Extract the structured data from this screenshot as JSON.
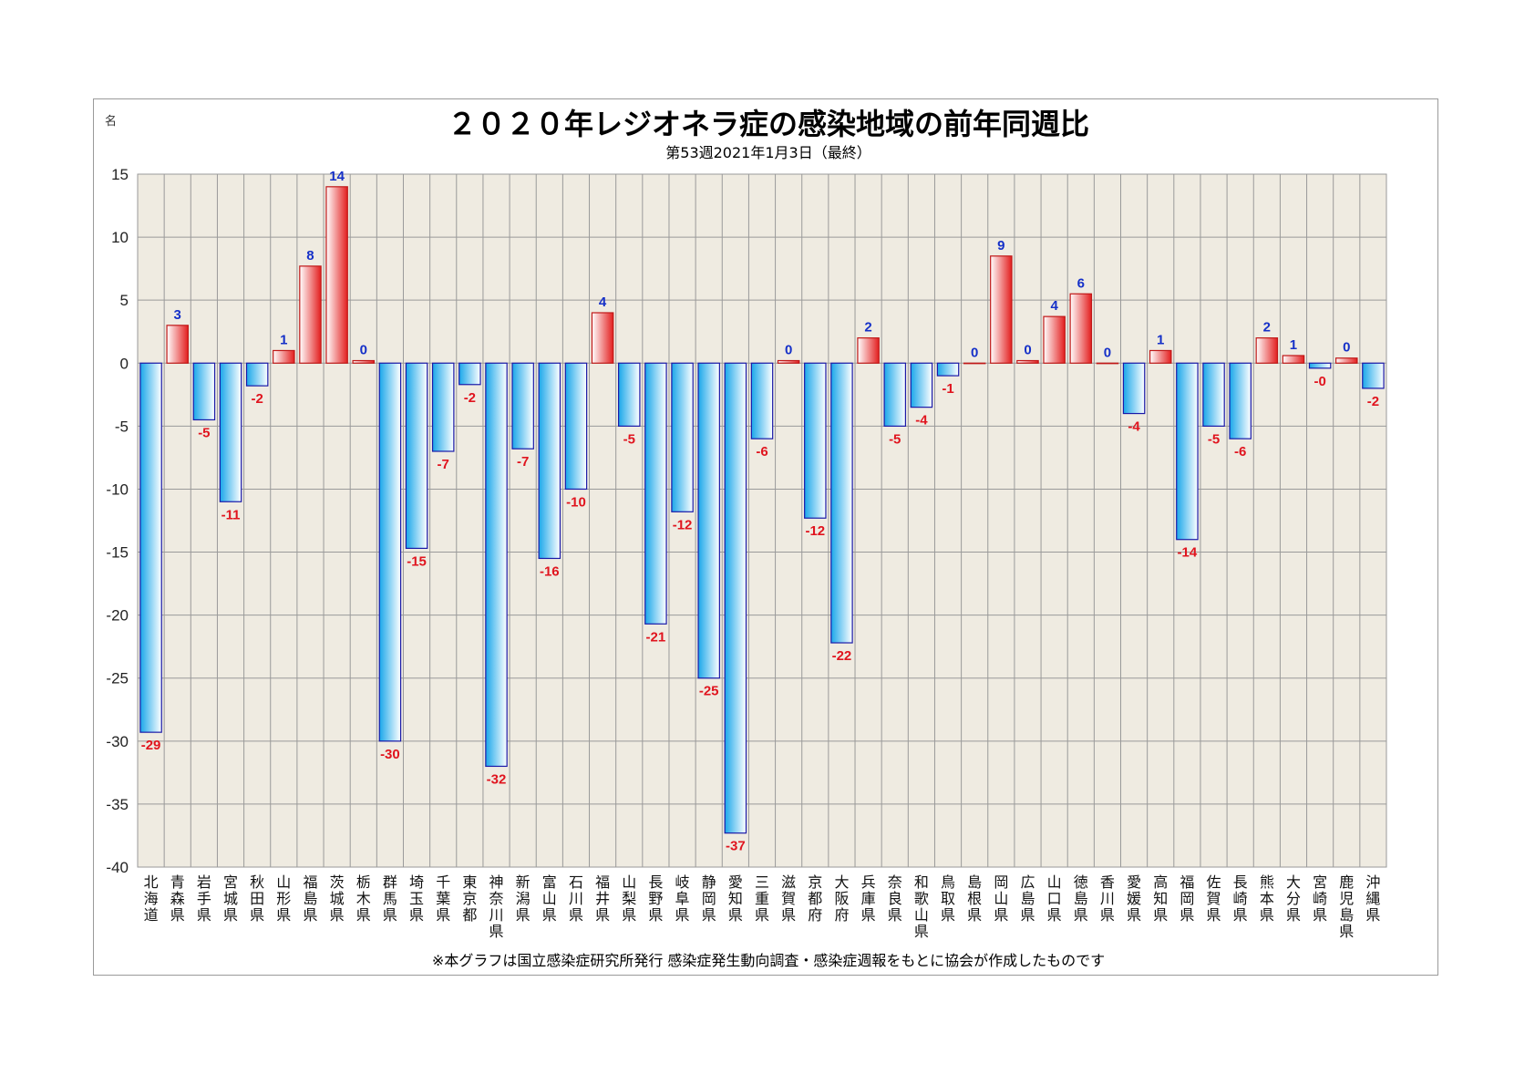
{
  "chart_data": {
    "type": "bar",
    "title": "２０２０年レジオネラ症の感染地域の前年同週比",
    "subtitle": "第53週2021年1月3日（最終）",
    "ylabel": "名",
    "ylim": [
      -40,
      15
    ],
    "yticks": [
      15,
      10,
      5,
      0,
      -5,
      -10,
      -15,
      -20,
      -25,
      -30,
      -35,
      -40
    ],
    "grid": true,
    "categories": [
      "北海道",
      "青森県",
      "岩手県",
      "宮城県",
      "秋田県",
      "山形県",
      "福島県",
      "茨城県",
      "栃木県",
      "群馬県",
      "埼玉県",
      "千葉県",
      "東京都",
      "神奈川県",
      "新潟県",
      "富山県",
      "石川県",
      "福井県",
      "山梨県",
      "長野県",
      "岐阜県",
      "静岡県",
      "愛知県",
      "三重県",
      "滋賀県",
      "京都府",
      "大阪府",
      "兵庫県",
      "奈良県",
      "和歌山県",
      "鳥取県",
      "島根県",
      "岡山県",
      "広島県",
      "山口県",
      "徳島県",
      "香川県",
      "愛媛県",
      "高知県",
      "福岡県",
      "佐賀県",
      "長崎県",
      "熊本県",
      "大分県",
      "宮崎県",
      "鹿児島県",
      "沖縄県"
    ],
    "values": [
      -29.3,
      3,
      -4.5,
      -11,
      -1.8,
      1,
      7.7,
      14,
      0.2,
      -30,
      -14.7,
      -7,
      -1.7,
      -32,
      -6.8,
      -15.5,
      -10,
      4,
      -5,
      -20.7,
      -11.8,
      -25,
      -37.3,
      -6,
      0.2,
      -12.3,
      -22.2,
      2,
      -5,
      -3.5,
      -1,
      0,
      8.5,
      0.2,
      3.7,
      5.5,
      0,
      -4,
      1,
      -14,
      -5,
      -6,
      2,
      0.6,
      -0.4,
      0.4,
      -2
    ],
    "data_labels": [
      "-29",
      "3",
      "-5",
      "-11",
      "-2",
      "1",
      "8",
      "14",
      "0",
      "-30",
      "-15",
      "-7",
      "-2",
      "-32",
      "-7",
      "-16",
      "-10",
      "4",
      "-5",
      "-21",
      "-12",
      "-25",
      "-37",
      "-6",
      "0",
      "-12",
      "-22",
      "2",
      "-5",
      "-4",
      "-1",
      "0",
      "9",
      "0",
      "4",
      "6",
      "0",
      "-4",
      "1",
      "-14",
      "-5",
      "-6",
      "2",
      "1",
      "-0",
      "0",
      "-2"
    ],
    "footnote": "※本グラフは国立感染症研究所発行 感染症発生動向調査・感染症週報をもとに協会が作成したものです"
  },
  "colors": {
    "positive_fill_dark": "#e31e1e",
    "positive_fill_light": "#ffffff",
    "positive_label": "#1530c8",
    "negative_fill_dark": "#1aa7ea",
    "negative_fill_light": "#ffffff",
    "negative_label": "#e0141e",
    "bar_stroke_negative": "#1a1aa8",
    "bar_stroke_positive": "#c01818",
    "plot_bg": "#efebe1",
    "grid": "#9a9a9a"
  }
}
